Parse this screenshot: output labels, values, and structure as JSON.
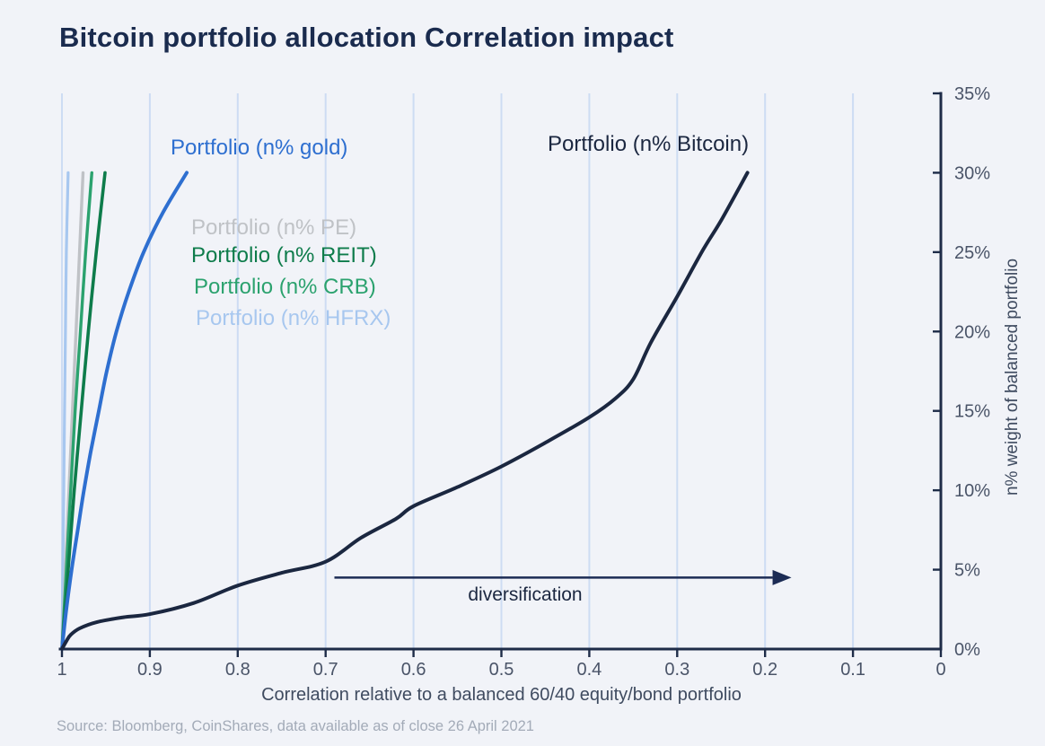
{
  "title": "Bitcoin portfolio allocation Correlation impact",
  "source": "Source: Bloomberg, CoinShares, data available as of close 26 April 2021",
  "colors": {
    "background": "#f1f3f8",
    "title_text": "#1a2b4e",
    "gridline": "#cddcf3",
    "axis": "#1e2c48",
    "tick_text": "#4a5468",
    "axis_title_text": "#3f4b60",
    "arrow": "#1c2c55",
    "source_text": "#a3abb8"
  },
  "chart_data": {
    "type": "line",
    "title": "Bitcoin portfolio allocation Correlation impact",
    "xlabel": "Correlation relative to a balanced 60/40 equity/bond portfolio",
    "ylabel": "n% weight of balanced portfolio",
    "x_axis": {
      "min": 0,
      "max": 1,
      "reversed": true,
      "tick_values": [
        1,
        0.9,
        0.8,
        0.7,
        0.6,
        0.5,
        0.4,
        0.3,
        0.2,
        0.1,
        0
      ],
      "tick_labels": [
        "1",
        "0.9",
        "0.8",
        "0.7",
        "0.6",
        "0.5",
        "0.4",
        "0.3",
        "0.2",
        "0.1",
        "0"
      ],
      "gridline_values": [
        1,
        0.9,
        0.8,
        0.7,
        0.6,
        0.5,
        0.4,
        0.3,
        0.2,
        0.1
      ],
      "grid": true
    },
    "y_axis": {
      "min": 0,
      "max": 35,
      "tick_values": [
        0,
        5,
        10,
        15,
        20,
        25,
        30,
        35
      ],
      "tick_labels": [
        "0%",
        "5%",
        "10%",
        "15%",
        "20%",
        "25%",
        "30%",
        "35%"
      ],
      "grid": false
    },
    "annotation": {
      "arrow_label": "diversification",
      "arrow_from_x": 0.69,
      "arrow_to_x": 0.17,
      "arrow_at_pct": 4.5
    },
    "legend_position": "inline-labels",
    "series": [
      {
        "name": "Portfolio (n% HFRX)",
        "color": "#a7c7ef",
        "stroke_width": 3.2,
        "points": [
          [
            1,
            0
          ],
          [
            0.999,
            5
          ],
          [
            0.998,
            10
          ],
          [
            0.997,
            15
          ],
          [
            0.996,
            20
          ],
          [
            0.995,
            25
          ],
          [
            0.993,
            30
          ]
        ]
      },
      {
        "name": "Portfolio (n% PE)",
        "color": "#bfc2c6",
        "stroke_width": 3.4,
        "points": [
          [
            1,
            0
          ],
          [
            0.996,
            5
          ],
          [
            0.992,
            10
          ],
          [
            0.988,
            15
          ],
          [
            0.984,
            20
          ],
          [
            0.98,
            25
          ],
          [
            0.976,
            30
          ]
        ]
      },
      {
        "name": "Portfolio (n% CRB)",
        "color": "#2ba26e",
        "stroke_width": 3.4,
        "points": [
          [
            1,
            0
          ],
          [
            0.995,
            5
          ],
          [
            0.99,
            10
          ],
          [
            0.985,
            15
          ],
          [
            0.979,
            20
          ],
          [
            0.973,
            25
          ],
          [
            0.966,
            30
          ]
        ]
      },
      {
        "name": "Portfolio (n% REIT)",
        "color": "#0e7c4b",
        "stroke_width": 3.6,
        "points": [
          [
            1,
            0
          ],
          [
            0.993,
            5
          ],
          [
            0.986,
            10
          ],
          [
            0.978,
            15
          ],
          [
            0.97,
            20
          ],
          [
            0.961,
            25
          ],
          [
            0.951,
            30
          ]
        ]
      },
      {
        "name": "Portfolio (n% gold)",
        "color": "#2e6fd0",
        "stroke_width": 4,
        "points": [
          [
            1,
            0
          ],
          [
            0.995,
            2.5
          ],
          [
            0.989,
            5
          ],
          [
            0.982,
            7.5
          ],
          [
            0.975,
            10
          ],
          [
            0.967,
            12.5
          ],
          [
            0.958,
            15
          ],
          [
            0.949,
            17.5
          ],
          [
            0.938,
            20
          ],
          [
            0.924,
            22.5
          ],
          [
            0.907,
            25
          ],
          [
            0.885,
            27.5
          ],
          [
            0.858,
            30
          ]
        ]
      },
      {
        "name": "Portfolio (n% Bitcoin)",
        "color": "#1b2740",
        "stroke_width": 4,
        "points": [
          [
            1,
            0
          ],
          [
            0.995,
            0.5
          ],
          [
            0.99,
            0.9
          ],
          [
            0.98,
            1.3
          ],
          [
            0.96,
            1.7
          ],
          [
            0.93,
            2.0
          ],
          [
            0.9,
            2.2
          ],
          [
            0.85,
            2.9
          ],
          [
            0.8,
            4.0
          ],
          [
            0.75,
            4.8
          ],
          [
            0.7,
            5.5
          ],
          [
            0.66,
            7.0
          ],
          [
            0.62,
            8.2
          ],
          [
            0.6,
            9.0
          ],
          [
            0.55,
            10.2
          ],
          [
            0.5,
            11.5
          ],
          [
            0.45,
            13.0
          ],
          [
            0.4,
            14.6
          ],
          [
            0.37,
            15.8
          ],
          [
            0.35,
            17.0
          ],
          [
            0.33,
            19.3
          ],
          [
            0.3,
            22.2
          ],
          [
            0.27,
            25.2
          ],
          [
            0.25,
            27.0
          ],
          [
            0.22,
            30.0
          ]
        ]
      }
    ]
  }
}
